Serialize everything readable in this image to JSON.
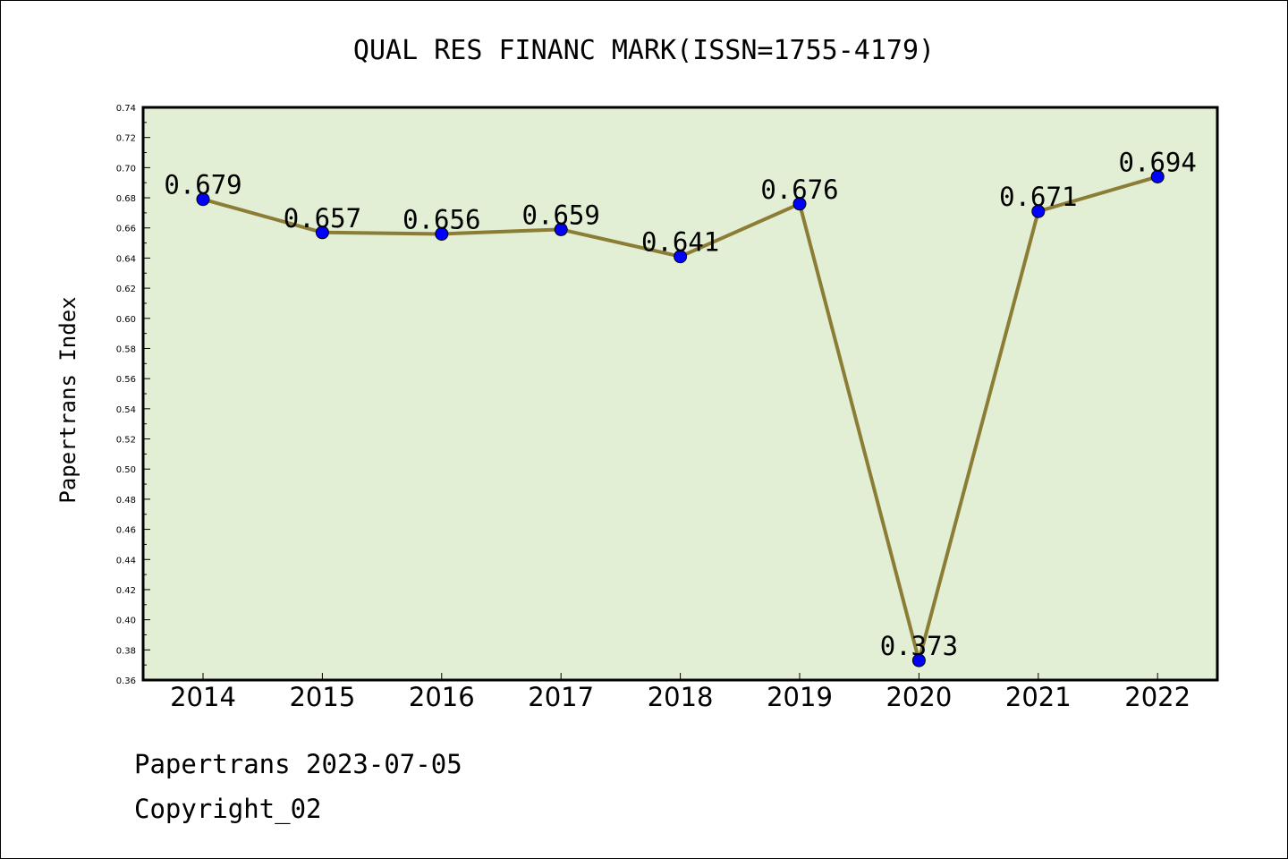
{
  "chart_data": {
    "type": "line",
    "title": "QUAL RES FINANC MARK(ISSN=1755-4179)",
    "xlabel": "",
    "ylabel": "Papertrans Index",
    "categories": [
      "2014",
      "2015",
      "2016",
      "2017",
      "2018",
      "2019",
      "2020",
      "2021",
      "2022"
    ],
    "values": [
      0.679,
      0.657,
      0.656,
      0.659,
      0.641,
      0.676,
      0.373,
      0.671,
      0.694
    ],
    "data_labels": [
      "0.679",
      "0.657",
      "0.656",
      "0.659",
      "0.641",
      "0.676",
      "0.373",
      "0.671",
      "0.694"
    ],
    "ylim": [
      0.36,
      0.74
    ],
    "yticks": [
      "0.36",
      "0.38",
      "0.40",
      "0.42",
      "0.44",
      "0.46",
      "0.48",
      "0.50",
      "0.52",
      "0.54",
      "0.56",
      "0.58",
      "0.60",
      "0.62",
      "0.64",
      "0.66",
      "0.68",
      "0.70",
      "0.72",
      "0.74"
    ],
    "grid": false,
    "colors": {
      "plot_background": "#e2efd5",
      "line": "#8b7d35",
      "marker": "#0000ff"
    }
  },
  "footer": {
    "line1": "Papertrans 2023-07-05",
    "line2": "Copyright_02"
  }
}
